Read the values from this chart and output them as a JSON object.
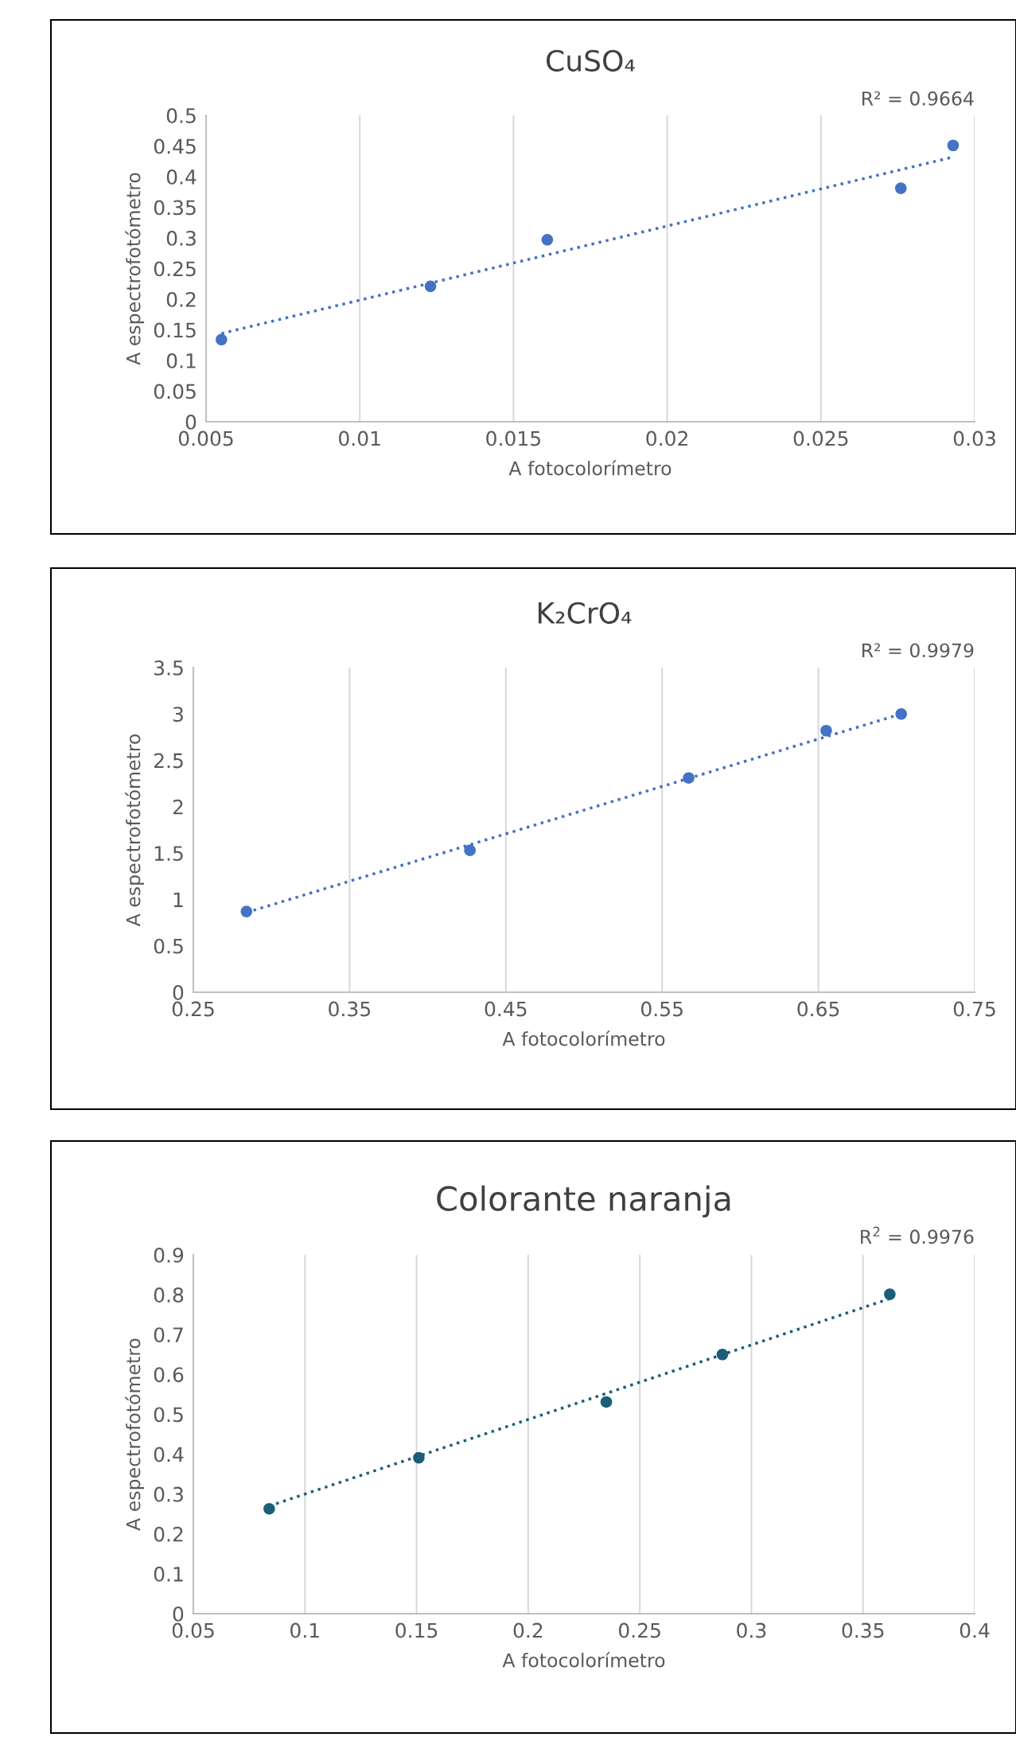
{
  "chart_data": [
    {
      "type": "scatter",
      "title": "CuSO₄",
      "xlabel": "A fotocolorímetro",
      "ylabel": "A espectrofotómetro",
      "annotations": [
        "R² = 0.9664"
      ],
      "grid": "x",
      "xlim": [
        0.005,
        0.03
      ],
      "xticks": [
        0.005,
        0.01,
        0.015,
        0.02,
        0.025,
        0.03
      ],
      "ylim": [
        0,
        0.5
      ],
      "yticks": [
        0,
        0.05,
        0.1,
        0.15,
        0.2,
        0.25,
        0.3,
        0.35,
        0.4,
        0.45,
        0.5
      ],
      "series": [
        {
          "color": "#4472c4",
          "marker": "circle",
          "x": [
            0.0055,
            0.0123,
            0.0161,
            0.0276,
            0.0293
          ],
          "values": [
            0.134,
            0.221,
            0.297,
            0.381,
            0.451
          ]
        },
        {
          "type": "line",
          "color": "#4472c4",
          "marker": "none",
          "line_style": "dotted",
          "x": [
            0.0055,
            0.0293
          ],
          "values": [
            0.144,
            0.432
          ]
        }
      ]
    },
    {
      "type": "scatter",
      "title": "K₂CrO₄",
      "xlabel": "A fotocolorímetro",
      "ylabel": "A espectrofotómetro",
      "annotations": [
        "R² = 0.9979"
      ],
      "grid": "x",
      "xlim": [
        0.25,
        0.75
      ],
      "xticks": [
        0.25,
        0.35,
        0.45,
        0.55,
        0.65,
        0.75
      ],
      "ylim": [
        0,
        3.5
      ],
      "yticks": [
        0,
        0.5,
        1,
        1.5,
        2,
        2.5,
        3,
        3.5
      ],
      "series": [
        {
          "color": "#4472c4",
          "marker": "circle",
          "x": [
            0.284,
            0.427,
            0.567,
            0.655,
            0.703
          ],
          "values": [
            0.87,
            1.53,
            2.31,
            2.82,
            3.0
          ]
        },
        {
          "type": "line",
          "color": "#4472c4",
          "marker": "none",
          "line_style": "dotted",
          "x": [
            0.284,
            0.703
          ],
          "values": [
            0.86,
            3.0
          ]
        }
      ]
    },
    {
      "type": "scatter",
      "title": "Colorante naranja",
      "xlabel": "A fotocolorímetro",
      "ylabel": "A espectrofotómetro",
      "annotations": [
        "R$^{2}$ = 0.9976"
      ],
      "grid": "x",
      "xlim": [
        0.05,
        0.4
      ],
      "xticks": [
        0.05,
        0.1,
        0.15,
        0.2,
        0.25,
        0.3,
        0.35,
        0.4
      ],
      "ylim": [
        0,
        0.9
      ],
      "yticks": [
        0,
        0.1,
        0.2,
        0.3,
        0.4,
        0.5,
        0.6,
        0.7,
        0.8,
        0.9
      ],
      "series": [
        {
          "color": "#1a5e7a",
          "marker": "circle",
          "x": [
            0.084,
            0.151,
            0.235,
            0.287,
            0.362
          ],
          "values": [
            0.263,
            0.391,
            0.531,
            0.65,
            0.801
          ]
        },
        {
          "type": "line",
          "color": "#1a5e7a",
          "marker": "none",
          "line_style": "dotted",
          "x": [
            0.084,
            0.362
          ],
          "values": [
            0.27,
            0.79
          ]
        }
      ]
    }
  ]
}
